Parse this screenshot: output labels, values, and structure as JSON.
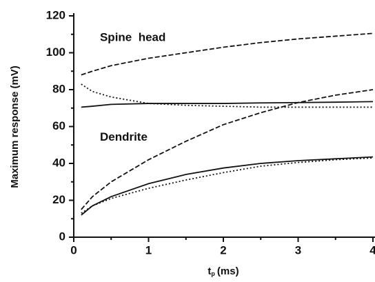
{
  "chart_data": {
    "type": "line",
    "xlabel": [
      "t",
      "p",
      "(ms)"
    ],
    "ylabel": "Maximum response (mV)",
    "annotations": [
      {
        "text": "Spine  head",
        "x": 0.35,
        "y": 108
      },
      {
        "text": "Dendrite",
        "x": 0.35,
        "y": 54
      }
    ],
    "x": [
      0.1,
      0.25,
      0.5,
      1,
      1.5,
      2,
      2.5,
      3,
      3.5,
      4
    ],
    "series": [
      {
        "color": "#111111",
        "style": "dashed",
        "values": [
          88,
          90,
          93,
          97,
          100,
          103,
          105.5,
          107.5,
          109,
          110.5
        ]
      },
      {
        "color": "#111111",
        "style": "dotted",
        "values": [
          83,
          79,
          76,
          72.5,
          71.5,
          71,
          70.5,
          70.5,
          70.5,
          70.5
        ]
      },
      {
        "color": "#111111",
        "style": "solid",
        "values": [
          70.5,
          71,
          72,
          72.5,
          72.5,
          72.5,
          72.8,
          73,
          73.2,
          73.5
        ]
      },
      {
        "color": "#111111",
        "style": "dashed",
        "values": [
          15,
          22,
          30,
          42,
          52,
          61,
          67.5,
          73,
          77,
          80
        ]
      },
      {
        "color": "#111111",
        "style": "solid",
        "values": [
          12,
          17,
          22,
          29,
          34,
          37.5,
          40,
          41.5,
          42.5,
          43.5
        ]
      },
      {
        "color": "#111111",
        "style": "dotted",
        "values": [
          13,
          17,
          21,
          26.5,
          31,
          35,
          38.5,
          40.5,
          42,
          43
        ]
      }
    ],
    "xlim": [
      0,
      4
    ],
    "xticks": [
      0,
      1,
      2,
      3,
      4
    ],
    "xminorticks": [
      0.5,
      1.5,
      2.5,
      3.5
    ],
    "ylim": [
      0,
      120
    ],
    "yticks": [
      0,
      20,
      40,
      60,
      80,
      100,
      120
    ],
    "yminorticks": [
      10,
      30,
      50,
      70,
      90,
      110
    ]
  }
}
